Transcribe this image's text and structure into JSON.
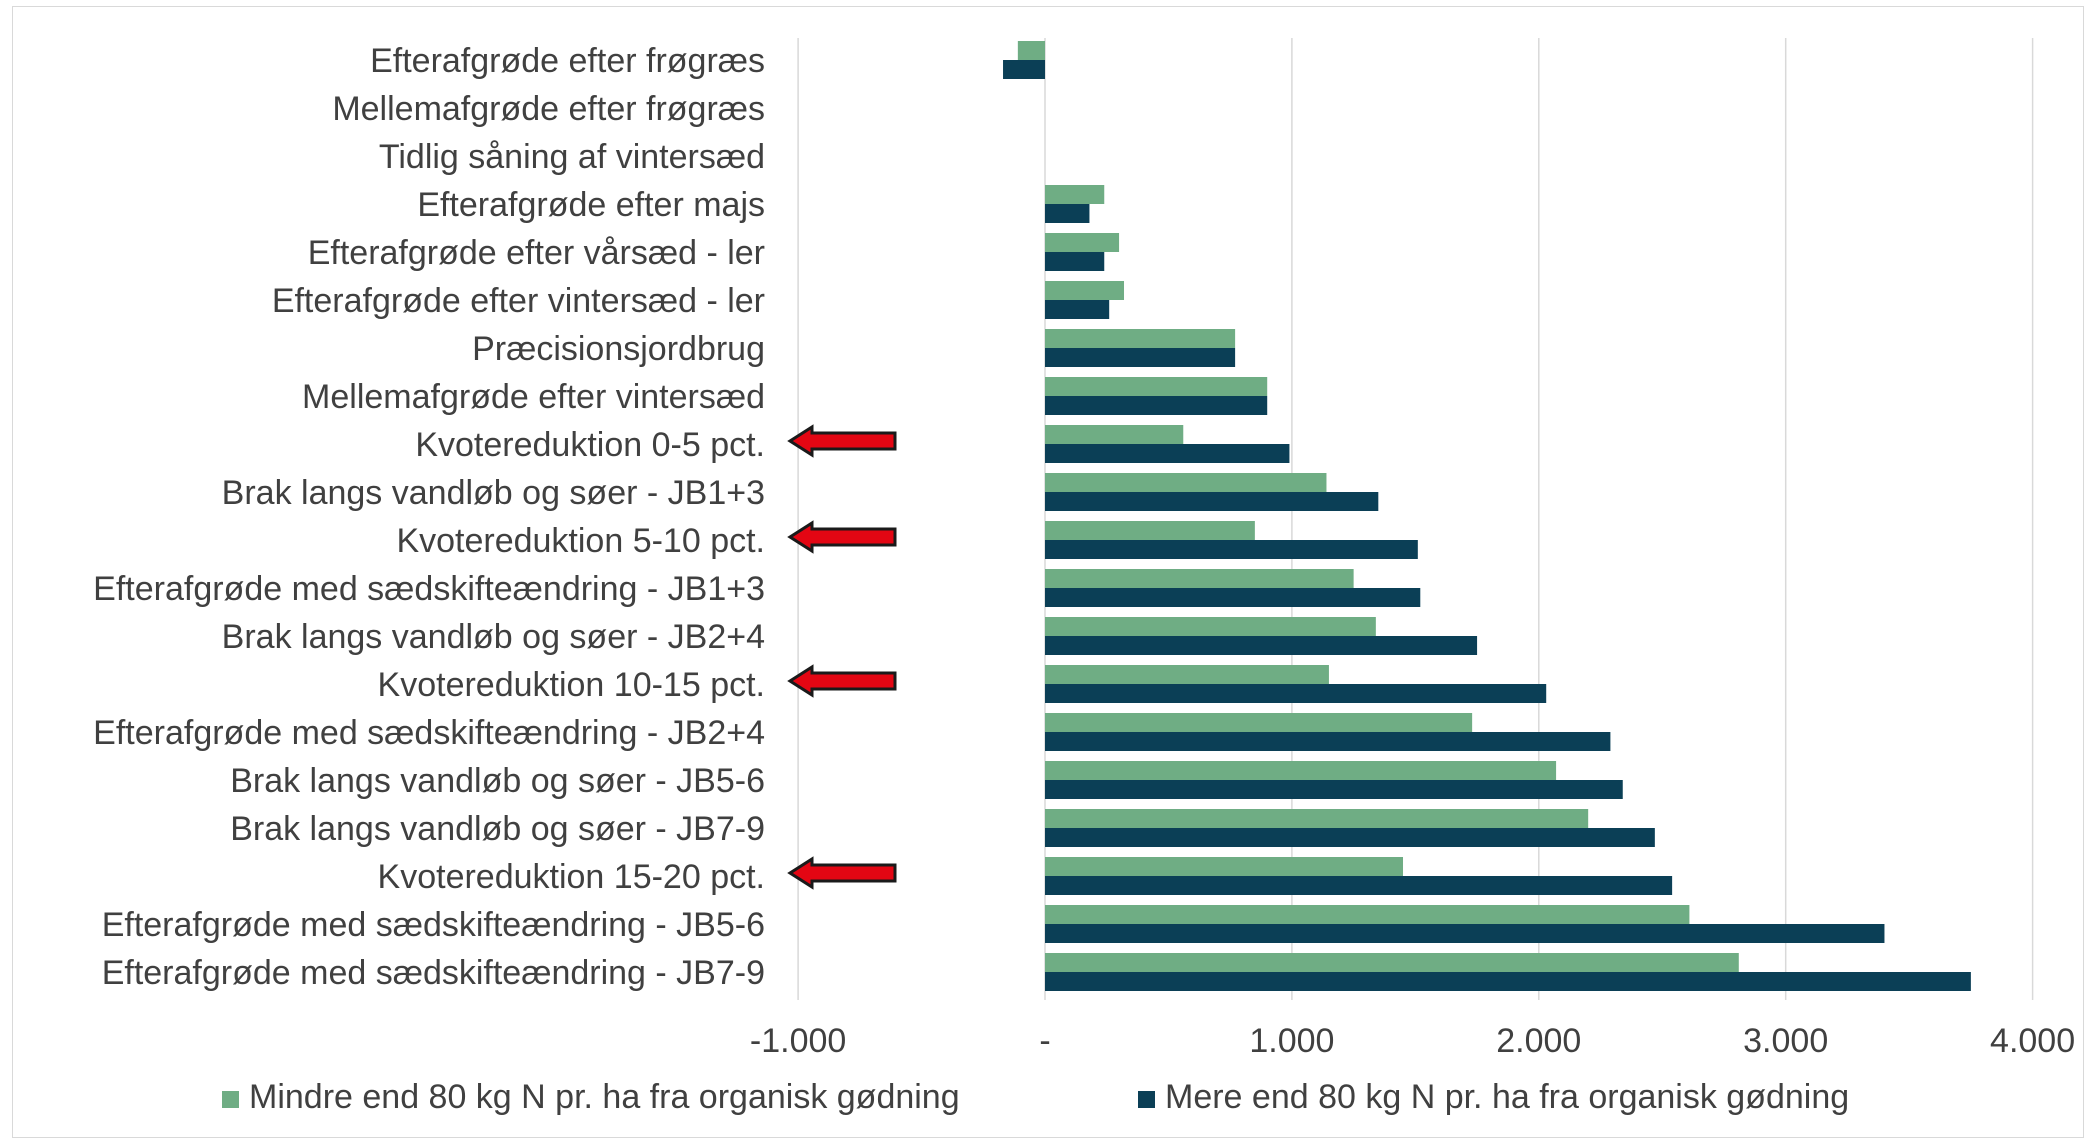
{
  "chart_data": {
    "type": "bar",
    "orientation": "horizontal",
    "categories": [
      "Efterafgrøde efter frøgræs",
      "Mellemafgrøde efter frøgræs",
      "Tidlig såning af vintersæd",
      "Efterafgrøde efter majs",
      "Efterafgrøde efter vårsæd - ler",
      "Efterafgrøde efter vintersæd - ler",
      "Præcisionsjordbrug",
      "Mellemafgrøde efter vintersæd",
      "Kvotereduktion 0-5 pct.",
      "Brak langs vandløb og søer - JB1+3",
      "Kvotereduktion 5-10 pct.",
      "Efterafgrøde med sædskifteændring - JB1+3",
      "Brak langs vandløb og søer - JB2+4",
      "Kvotereduktion 10-15 pct.",
      "Efterafgrøde med sædskifteændring - JB2+4",
      "Brak langs vandløb og søer - JB5-6",
      "Brak langs vandløb og søer - JB7-9",
      "Kvotereduktion 15-20 pct.",
      "Efterafgrøde med sædskifteændring - JB5-6",
      "Efterafgrøde med sædskifteændring - JB7-9"
    ],
    "series": [
      {
        "name": "Mindre end 80 kg N pr. ha fra organisk gødning",
        "color": "#6fad84",
        "values": [
          -110,
          0,
          0,
          240,
          300,
          320,
          770,
          900,
          560,
          1140,
          850,
          1250,
          1340,
          1150,
          1730,
          2070,
          2200,
          1450,
          2610,
          2810
        ]
      },
      {
        "name": "Mere end 80 kg N pr. ha fra organisk gødning",
        "color": "#0b3f56",
        "values": [
          -170,
          0,
          0,
          180,
          240,
          260,
          770,
          900,
          990,
          1350,
          1510,
          1520,
          1750,
          2030,
          2290,
          2340,
          2470,
          2540,
          3400,
          3750
        ]
      }
    ],
    "x_ticks": [
      -1000,
      0,
      1000,
      2000,
      3000,
      4000
    ],
    "x_tick_labels": [
      "-1.000",
      "-",
      "1.000",
      "2.000",
      "3.000",
      "4.000"
    ],
    "xlim": [
      -1000,
      4000
    ],
    "grid": "vertical",
    "legend": "bottom",
    "highlighted_categories": [
      "Kvotereduktion 0-5 pct.",
      "Kvotereduktion 5-10 pct.",
      "Kvotereduktion 10-15 pct.",
      "Kvotereduktion 15-20 pct."
    ],
    "highlight_marker": "left-pointing-arrow",
    "highlight_color": "#e30613",
    "title": "",
    "xlabel": "",
    "ylabel": ""
  }
}
